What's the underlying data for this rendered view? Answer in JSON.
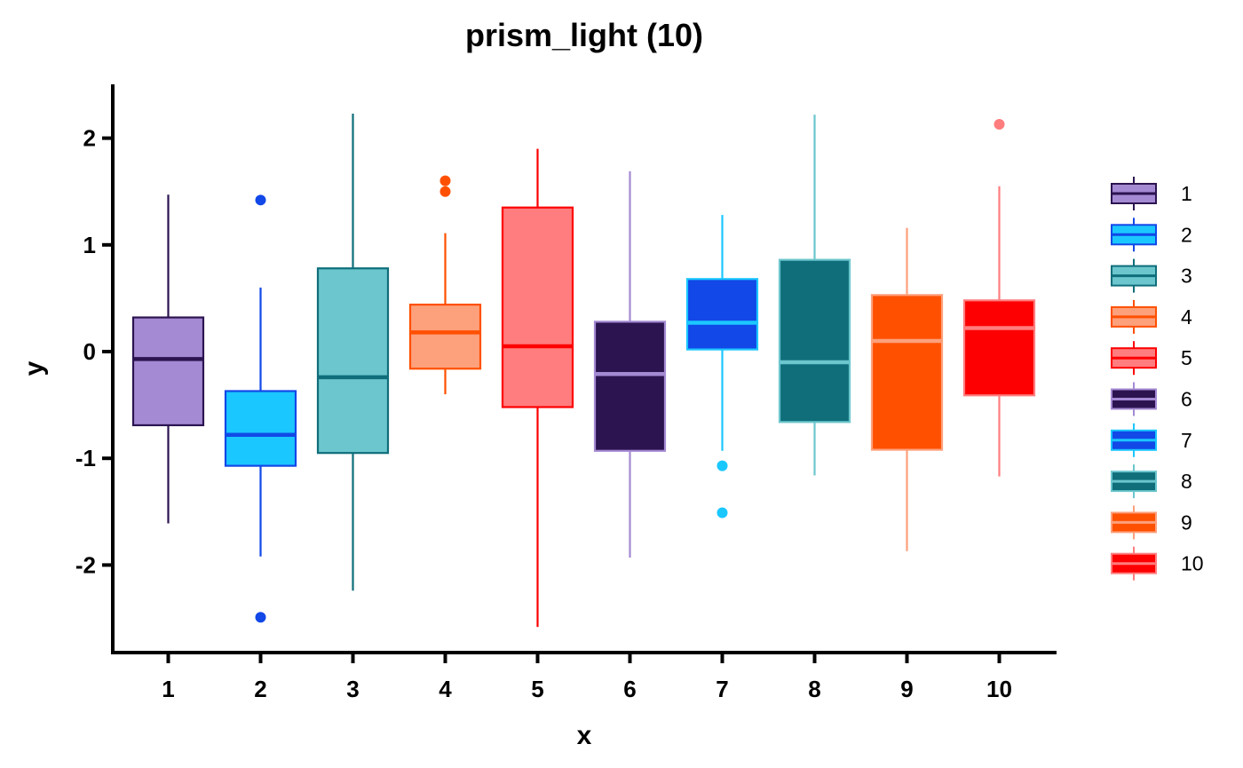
{
  "chart_data": {
    "type": "boxplot",
    "title": "prism_light (10)",
    "xlabel": "x",
    "ylabel": "y",
    "ylim": [
      -2.8,
      2.5
    ],
    "yticks": [
      -2,
      -1,
      0,
      1,
      2
    ],
    "yticklabels": [
      "-2",
      "-1",
      "0",
      "1",
      "2"
    ],
    "categories": [
      "1",
      "2",
      "3",
      "4",
      "5",
      "6",
      "7",
      "8",
      "9",
      "10"
    ],
    "legend": {
      "position": "right",
      "entries": [
        "1",
        "2",
        "3",
        "4",
        "5",
        "6",
        "7",
        "8",
        "9",
        "10"
      ]
    },
    "grid": false,
    "boxes": [
      {
        "name": "1",
        "fill": "#a48ad3",
        "line": "#2c1450",
        "whisker_low": -1.61,
        "q1": -0.69,
        "median": -0.07,
        "q3": 0.32,
        "whisker_high": 1.47,
        "outliers": []
      },
      {
        "name": "2",
        "fill": "#1bc7ff",
        "line": "#1148e7",
        "whisker_low": -1.92,
        "q1": -1.07,
        "median": -0.78,
        "q3": -0.37,
        "whisker_high": 0.6,
        "outliers": [
          1.42,
          -2.49
        ]
      },
      {
        "name": "3",
        "fill": "#6cc6cd",
        "line": "#0f6e7a",
        "whisker_low": -2.24,
        "q1": -0.95,
        "median": -0.24,
        "q3": 0.78,
        "whisker_high": 2.23,
        "outliers": []
      },
      {
        "name": "4",
        "fill": "#fda07c",
        "line": "#ff5000",
        "whisker_low": -0.4,
        "q1": -0.16,
        "median": 0.18,
        "q3": 0.44,
        "whisker_high": 1.11,
        "outliers": [
          1.6,
          1.5
        ]
      },
      {
        "name": "5",
        "fill": "#ff7d7e",
        "line": "#fd0002",
        "whisker_low": -2.58,
        "q1": -0.52,
        "median": 0.05,
        "q3": 1.35,
        "whisker_high": 1.9,
        "outliers": []
      },
      {
        "name": "6",
        "fill": "#2c1450",
        "line": "#a48ad3",
        "whisker_low": -1.93,
        "q1": -0.93,
        "median": -0.21,
        "q3": 0.28,
        "whisker_high": 1.69,
        "outliers": []
      },
      {
        "name": "7",
        "fill": "#1148e7",
        "line": "#1bc7ff",
        "whisker_low": -0.93,
        "q1": 0.02,
        "median": 0.27,
        "q3": 0.68,
        "whisker_high": 1.28,
        "outliers": [
          -1.07,
          -1.51
        ]
      },
      {
        "name": "8",
        "fill": "#0f6e7a",
        "line": "#6cc6cd",
        "whisker_low": -1.16,
        "q1": -0.66,
        "median": -0.1,
        "q3": 0.86,
        "whisker_high": 2.22,
        "outliers": []
      },
      {
        "name": "9",
        "fill": "#ff5000",
        "line": "#fda07c",
        "whisker_low": -1.87,
        "q1": -0.92,
        "median": 0.1,
        "q3": 0.53,
        "whisker_high": 1.16,
        "outliers": []
      },
      {
        "name": "10",
        "fill": "#fd0002",
        "line": "#ff7d7e",
        "whisker_low": -1.17,
        "q1": -0.41,
        "median": 0.22,
        "q3": 0.48,
        "whisker_high": 1.55,
        "outliers": [
          2.13
        ]
      }
    ]
  }
}
